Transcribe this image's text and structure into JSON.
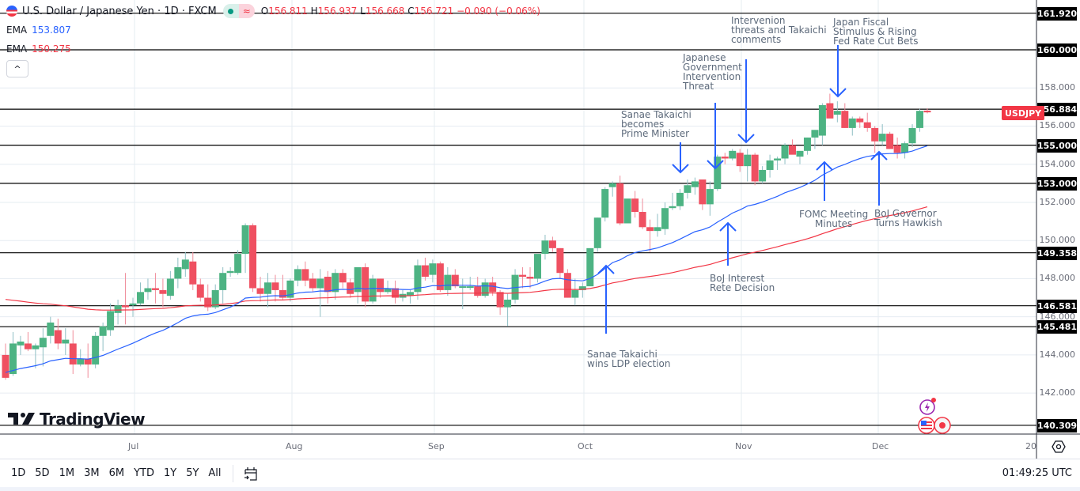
{
  "header": {
    "title": "U.S. Dollar / Japanese Yen · 1D · FXCM",
    "ohlc": {
      "o_label": "O",
      "o": "156.811",
      "h_label": "H",
      "h": "156.937",
      "l_label": "L",
      "l": "156.668",
      "c_label": "C",
      "c": "156.721",
      "change": "−0.090 (−0.06%)"
    },
    "indicators": [
      {
        "label": "EMA",
        "value": "153.807",
        "color": "#2962ff"
      },
      {
        "label": "EMA",
        "value": "150.275",
        "color": "#f23645"
      }
    ],
    "collapse_icon": "^"
  },
  "symbol_tag": "USDJPY",
  "price_axis": {
    "ticks": [
      "158.000",
      "156.000",
      "154.000",
      "152.000",
      "150.000",
      "148.000",
      "146.000",
      "144.000",
      "142.000"
    ],
    "level_tags": [
      "161.920",
      "160.000",
      "156.884",
      "155.000",
      "153.000",
      "149.358",
      "146.581",
      "145.481",
      "140.309"
    ]
  },
  "time_axis": {
    "labels": [
      "Jul",
      "Aug",
      "Sep",
      "Oct",
      "Nov",
      "Dec",
      "20"
    ]
  },
  "annotations": [
    {
      "id": "ldp",
      "text": "Sanae Takaichi\nwins LDP election"
    },
    {
      "id": "pm",
      "text": "Sanae Takaichi\nbecomes\nPrime Minister"
    },
    {
      "id": "gov",
      "text": "Japanese\nGovernment\nIntervention\nThreat"
    },
    {
      "id": "interv",
      "text": "Intervenion\nthreats and Takaichi\ncomments"
    },
    {
      "id": "fiscal",
      "text": "Japan Fiscal\nStimulus & Rising\nFed Rate Cut Bets"
    },
    {
      "id": "boj_rate",
      "text": "BoJ Interest\nRete Decision"
    },
    {
      "id": "fomc",
      "text": "FOMC Meeting\nMinutes"
    },
    {
      "id": "boj_gov",
      "text": "BoJ Governor\nTurns Hawkish"
    }
  ],
  "branding": {
    "logo_text": "TradingView"
  },
  "bottom_bar": {
    "ranges": [
      "1D",
      "5D",
      "1M",
      "3M",
      "6M",
      "YTD",
      "1Y",
      "5Y",
      "All"
    ],
    "clock": "01:49:25 UTC"
  },
  "colors": {
    "up": "#4db383",
    "down": "#ef5061",
    "ema_fast": "#2962ff",
    "ema_slow": "#f23645",
    "arrow": "#2962ff",
    "level": "#000000",
    "grid": "#e6ecf2"
  },
  "chart_data": {
    "type": "candlestick",
    "title": "U.S. Dollar / Japanese Yen · 1D · FXCM",
    "xlabel": "",
    "ylabel": "USDJPY",
    "ylim": [
      139.5,
      162.5
    ],
    "x_ticks": [
      "Jul",
      "Aug",
      "Sep",
      "Oct",
      "Nov",
      "Dec",
      "20"
    ],
    "y_ticks": [
      142,
      144,
      146,
      148,
      150,
      152,
      154,
      156,
      158,
      160
    ],
    "grid": true,
    "horizontal_levels": [
      161.92,
      160.0,
      156.884,
      155.0,
      153.0,
      149.358,
      146.581,
      145.481,
      140.309
    ],
    "last_ohlc": {
      "open": 156.811,
      "high": 156.937,
      "low": 156.668,
      "close": 156.721,
      "change": -0.09,
      "change_pct": -0.06
    },
    "candles": [
      [
        144.0,
        144.6,
        142.7,
        142.8
      ],
      [
        143.0,
        145.2,
        142.9,
        144.6
      ],
      [
        144.5,
        145.0,
        144.0,
        144.7
      ],
      [
        144.6,
        145.2,
        144.2,
        144.3
      ],
      [
        144.3,
        144.6,
        143.3,
        144.5
      ],
      [
        144.4,
        145.4,
        143.4,
        144.9
      ],
      [
        145.0,
        146.0,
        144.6,
        145.7
      ],
      [
        145.3,
        145.9,
        144.3,
        144.6
      ],
      [
        144.6,
        145.4,
        144.0,
        144.8
      ],
      [
        144.6,
        145.3,
        143.0,
        143.5
      ],
      [
        143.5,
        144.3,
        143.4,
        143.8
      ],
      [
        143.8,
        144.6,
        142.8,
        143.5
      ],
      [
        143.5,
        145.2,
        143.3,
        145.0
      ],
      [
        145.0,
        145.7,
        144.2,
        145.5
      ],
      [
        145.3,
        146.7,
        145.0,
        146.3
      ],
      [
        146.2,
        146.9,
        145.6,
        146.6
      ],
      [
        146.6,
        148.3,
        145.6,
        146.5
      ],
      [
        146.6,
        147.0,
        146.0,
        146.7
      ],
      [
        146.7,
        147.8,
        146.6,
        147.3
      ],
      [
        147.3,
        148.0,
        146.9,
        147.5
      ],
      [
        147.5,
        148.3,
        146.7,
        147.4
      ],
      [
        147.4,
        148.0,
        146.5,
        147.2
      ],
      [
        147.1,
        148.4,
        146.9,
        148.0
      ],
      [
        148.0,
        149.1,
        147.5,
        148.6
      ],
      [
        148.5,
        149.4,
        148.1,
        149.0
      ],
      [
        148.9,
        149.4,
        147.4,
        147.7
      ],
      [
        147.7,
        148.0,
        146.8,
        147.0
      ],
      [
        147.0,
        147.7,
        146.3,
        146.5
      ],
      [
        146.5,
        147.7,
        146.4,
        147.4
      ],
      [
        147.4,
        148.6,
        146.7,
        148.3
      ],
      [
        148.3,
        148.6,
        148.1,
        148.4
      ],
      [
        148.3,
        149.5,
        148.2,
        149.3
      ],
      [
        149.3,
        150.9,
        148.3,
        150.8
      ],
      [
        150.8,
        150.9,
        147.3,
        147.5
      ],
      [
        147.5,
        148.1,
        146.8,
        147.2
      ],
      [
        147.2,
        148.3,
        146.5,
        147.8
      ],
      [
        147.8,
        148.2,
        146.8,
        147.4
      ],
      [
        147.4,
        148.2,
        146.9,
        147.0
      ],
      [
        147.0,
        148.0,
        146.8,
        147.9
      ],
      [
        147.9,
        148.7,
        147.6,
        148.5
      ],
      [
        148.5,
        148.9,
        147.6,
        147.9
      ],
      [
        148.0,
        148.3,
        147.3,
        147.5
      ],
      [
        147.5,
        148.5,
        146.0,
        148.0
      ],
      [
        148.1,
        148.4,
        146.7,
        147.3
      ],
      [
        147.3,
        148.5,
        146.9,
        148.3
      ],
      [
        148.3,
        148.5,
        147.5,
        147.8
      ],
      [
        147.8,
        148.0,
        147.0,
        147.2
      ],
      [
        147.3,
        148.6,
        146.7,
        148.6
      ],
      [
        148.6,
        148.8,
        146.5,
        146.8
      ],
      [
        146.8,
        148.2,
        146.7,
        148.0
      ],
      [
        148.0,
        148.0,
        147.0,
        147.3
      ],
      [
        147.3,
        147.9,
        147.2,
        147.5
      ],
      [
        147.5,
        147.9,
        146.7,
        147.0
      ],
      [
        147.0,
        147.4,
        146.8,
        147.2
      ],
      [
        147.1,
        147.4,
        146.7,
        147.3
      ],
      [
        147.3,
        149.0,
        146.9,
        148.7
      ],
      [
        148.7,
        149.1,
        147.9,
        148.1
      ],
      [
        148.2,
        149.0,
        147.8,
        148.8
      ],
      [
        148.8,
        148.9,
        147.3,
        147.4
      ],
      [
        147.4,
        148.6,
        147.1,
        148.2
      ],
      [
        148.2,
        148.5,
        147.5,
        147.6
      ],
      [
        147.6,
        148.0,
        146.4,
        147.6
      ],
      [
        147.6,
        148.1,
        147.4,
        147.6
      ],
      [
        147.6,
        148.1,
        147.0,
        147.1
      ],
      [
        147.1,
        148.0,
        147.0,
        147.8
      ],
      [
        147.8,
        148.1,
        147.1,
        147.3
      ],
      [
        147.3,
        147.4,
        146.1,
        146.5
      ],
      [
        146.5,
        147.2,
        145.5,
        146.9
      ],
      [
        146.9,
        148.5,
        146.7,
        148.2
      ],
      [
        148.2,
        148.6,
        147.5,
        148.1
      ],
      [
        148.1,
        148.6,
        147.5,
        148.0
      ],
      [
        148.0,
        149.0,
        147.8,
        149.3
      ],
      [
        149.3,
        150.3,
        149.0,
        150.0
      ],
      [
        150.0,
        150.2,
        149.4,
        149.6
      ],
      [
        149.6,
        149.6,
        148.0,
        148.3
      ],
      [
        148.3,
        148.5,
        147.0,
        147.0
      ],
      [
        147.0,
        148.0,
        146.6,
        147.4
      ],
      [
        147.4,
        147.8,
        147.0,
        147.6
      ],
      [
        147.6,
        149.2,
        148.8,
        149.6
      ],
      [
        149.6,
        151.2,
        149.4,
        151.2
      ],
      [
        151.2,
        152.8,
        151.0,
        152.7
      ],
      [
        152.8,
        153.1,
        152.3,
        153.0
      ],
      [
        153.0,
        153.4,
        150.8,
        150.9
      ],
      [
        150.9,
        152.0,
        150.9,
        152.2
      ],
      [
        152.2,
        152.6,
        151.2,
        151.5
      ],
      [
        151.5,
        152.2,
        150.6,
        150.7
      ],
      [
        150.7,
        151.1,
        149.4,
        150.5
      ],
      [
        150.5,
        151.4,
        150.2,
        150.7
      ],
      [
        150.6,
        152.0,
        150.3,
        151.7
      ],
      [
        151.7,
        152.5,
        151.6,
        151.8
      ],
      [
        151.8,
        152.7,
        151.6,
        152.5
      ],
      [
        152.5,
        153.2,
        152.2,
        152.9
      ],
      [
        152.8,
        153.3,
        152.4,
        153.1
      ],
      [
        153.2,
        153.2,
        151.6,
        151.9
      ],
      [
        151.9,
        153.1,
        151.3,
        152.7
      ],
      [
        152.7,
        154.5,
        152.6,
        154.4
      ],
      [
        154.4,
        154.6,
        154.0,
        154.3
      ],
      [
        154.3,
        154.8,
        154.2,
        154.7
      ],
      [
        154.6,
        154.8,
        153.6,
        153.9
      ],
      [
        153.9,
        154.8,
        153.1,
        154.5
      ],
      [
        154.5,
        154.6,
        152.9,
        153.1
      ],
      [
        153.1,
        153.9,
        153.0,
        153.7
      ],
      [
        153.7,
        154.5,
        153.3,
        154.2
      ],
      [
        154.2,
        154.4,
        153.7,
        154.3
      ],
      [
        154.3,
        155.1,
        154.0,
        155.0
      ],
      [
        155.0,
        155.3,
        154.6,
        154.5
      ],
      [
        154.4,
        154.6,
        154.0,
        154.7
      ],
      [
        154.7,
        155.4,
        154.5,
        155.4
      ],
      [
        155.4,
        155.8,
        154.8,
        155.8
      ],
      [
        155.5,
        157.2,
        155.0,
        157.1
      ],
      [
        157.2,
        157.7,
        156.7,
        156.4
      ],
      [
        156.6,
        157.3,
        156.2,
        156.8
      ],
      [
        156.8,
        157.2,
        155.9,
        155.9
      ],
      [
        155.9,
        156.5,
        155.5,
        156.4
      ],
      [
        156.4,
        156.5,
        155.9,
        156.2
      ],
      [
        156.2,
        156.7,
        155.7,
        155.9
      ],
      [
        155.9,
        156.0,
        154.6,
        155.2
      ],
      [
        155.2,
        156.1,
        155.0,
        155.6
      ],
      [
        155.6,
        155.7,
        154.8,
        154.8
      ],
      [
        155.0,
        155.4,
        154.3,
        154.6
      ],
      [
        154.6,
        155.2,
        154.3,
        155.1
      ],
      [
        155.1,
        156.1,
        154.9,
        155.9
      ],
      [
        155.9,
        156.9,
        155.7,
        156.8
      ],
      [
        156.811,
        156.937,
        156.668,
        156.721
      ]
    ],
    "series": [
      {
        "name": "EMA (fast, blue)",
        "last": 153.807
      },
      {
        "name": "EMA (slow, red)",
        "last": 150.275
      }
    ]
  }
}
